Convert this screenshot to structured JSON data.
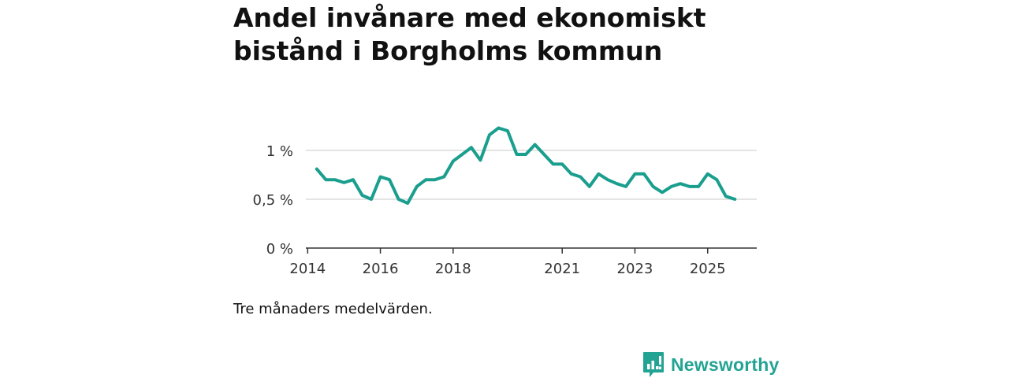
{
  "title": "Andel invånare med ekonomiskt bistånd i Borgholms kommun",
  "caption": "Tre månaders medelvärden.",
  "brand": {
    "name": "Newsworthy",
    "color": "#23a393",
    "icon": "newsworthy-logo-icon"
  },
  "chart_data": {
    "type": "line",
    "title": "Andel invånare med ekonomiskt bistånd i Borgholms kommun",
    "xlabel": "",
    "ylabel": "",
    "grid": true,
    "legend": "none",
    "ylim": [
      0,
      1.25
    ],
    "xlim": [
      2013.95,
      2026.35
    ],
    "y_ticks": [
      {
        "value": 0,
        "label": "0 %"
      },
      {
        "value": 0.5,
        "label": "0,5 %"
      },
      {
        "value": 1,
        "label": "1 %"
      }
    ],
    "x_ticks": [
      {
        "value": 2014,
        "label": "2014"
      },
      {
        "value": 2016,
        "label": "2016"
      },
      {
        "value": 2018,
        "label": "2018"
      },
      {
        "value": 2021,
        "label": "2021"
      },
      {
        "value": 2023,
        "label": "2023"
      },
      {
        "value": 2025,
        "label": "2025"
      }
    ],
    "series": [
      {
        "name": "Andel invånare med ekonomiskt bistånd",
        "color": "#1a9e8e",
        "x": [
          2014.25,
          2014.5,
          2014.75,
          2015.0,
          2015.25,
          2015.5,
          2015.75,
          2016.0,
          2016.25,
          2016.5,
          2016.75,
          2017.0,
          2017.25,
          2017.5,
          2017.75,
          2018.0,
          2018.25,
          2018.5,
          2018.75,
          2019.0,
          2019.25,
          2019.5,
          2019.75,
          2020.0,
          2020.25,
          2020.5,
          2020.75,
          2021.0,
          2021.25,
          2021.5,
          2021.75,
          2022.0,
          2022.25,
          2022.5,
          2022.75,
          2023.0,
          2023.25,
          2023.5,
          2023.75,
          2024.0,
          2024.25,
          2024.5,
          2024.75,
          2025.0,
          2025.25,
          2025.5,
          2025.75
        ],
        "values": [
          0.81,
          0.7,
          0.7,
          0.67,
          0.7,
          0.54,
          0.5,
          0.73,
          0.7,
          0.5,
          0.46,
          0.63,
          0.7,
          0.7,
          0.73,
          0.89,
          0.96,
          1.03,
          0.9,
          1.16,
          1.23,
          1.2,
          0.96,
          0.96,
          1.06,
          0.96,
          0.86,
          0.86,
          0.76,
          0.73,
          0.63,
          0.76,
          0.7,
          0.66,
          0.63,
          0.76,
          0.76,
          0.63,
          0.57,
          0.63,
          0.66,
          0.63,
          0.63,
          0.76,
          0.7,
          0.53,
          0.5
        ]
      }
    ]
  }
}
